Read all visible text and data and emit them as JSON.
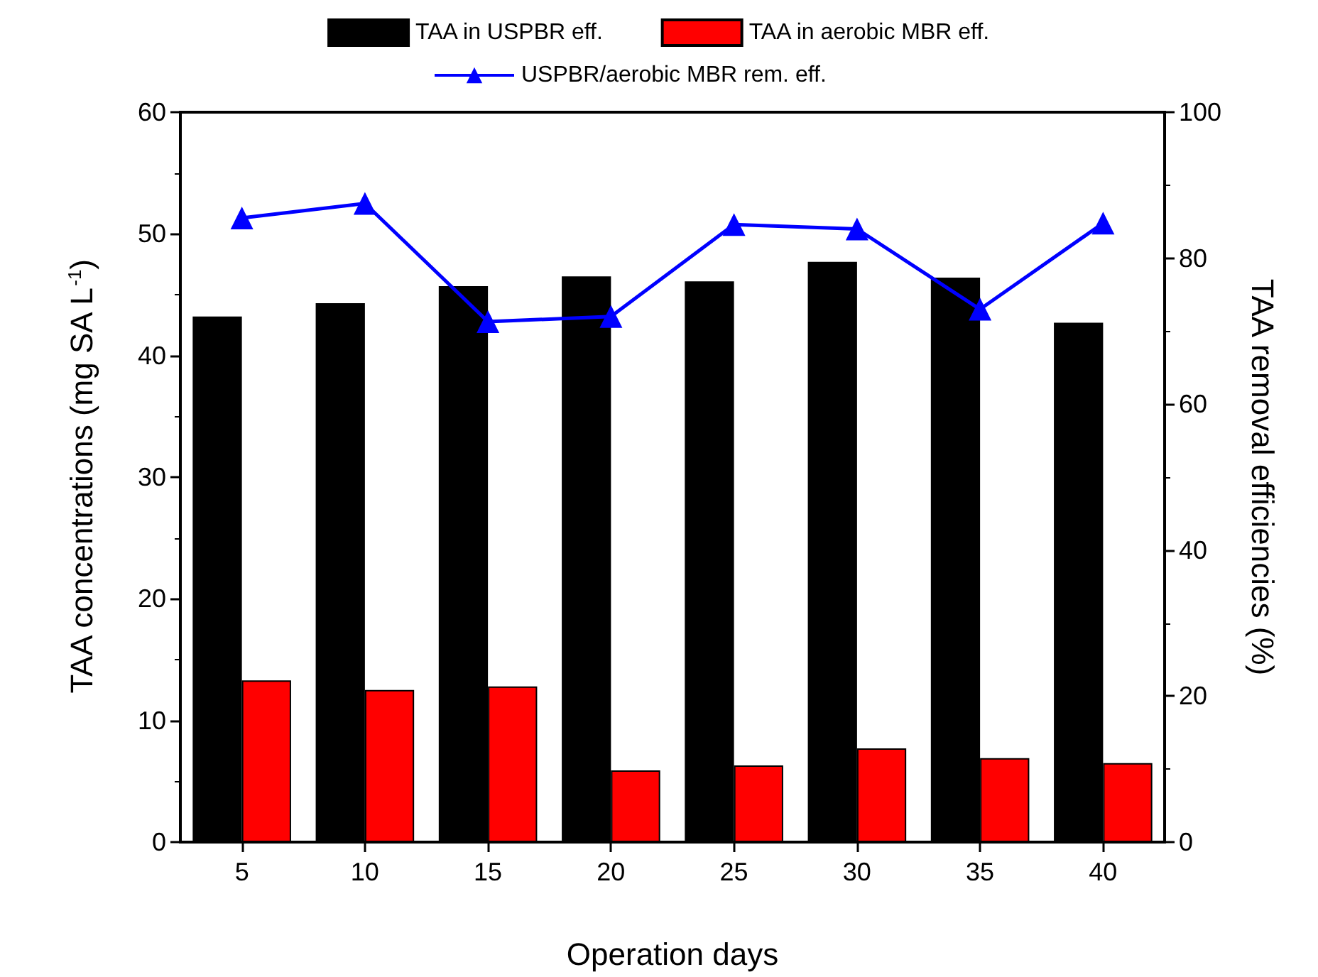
{
  "chart_data": {
    "type": "bar",
    "xlabel": "Operation days",
    "ylabel": "TAA concentrations (mg SA L$^{-1}$)",
    "y2label": "TAA removal efficiencies (%)",
    "categories": [
      "5",
      "10",
      "15",
      "20",
      "25",
      "30",
      "35",
      "40"
    ],
    "series": [
      {
        "name": "TAA in USPBR eff.",
        "color": "#000000",
        "values": [
          43.2,
          44.3,
          45.7,
          46.5,
          46.1,
          47.7,
          46.4,
          42.7
        ]
      },
      {
        "name": "TAA in aerobic MBR eff.",
        "color": "#ff0000",
        "values": [
          13.3,
          12.5,
          12.8,
          5.9,
          6.3,
          7.7,
          6.9,
          6.5
        ]
      },
      {
        "name": "USPBR/aerobic MBR rem. eff.",
        "type": "line",
        "axis": "y2",
        "color": "#0000ff",
        "marker": "triangle",
        "line_style": "solid",
        "values": [
          85.5,
          87.5,
          71.3,
          72.0,
          84.6,
          84.0,
          73.0,
          84.8
        ]
      }
    ],
    "ylim": [
      0,
      60
    ],
    "yticks": [
      0,
      10,
      20,
      30,
      40,
      50,
      60
    ],
    "y2lim": [
      0,
      100
    ],
    "y2ticks": [
      0,
      20,
      40,
      60,
      80,
      100
    ],
    "legend": "top",
    "grid": false
  }
}
